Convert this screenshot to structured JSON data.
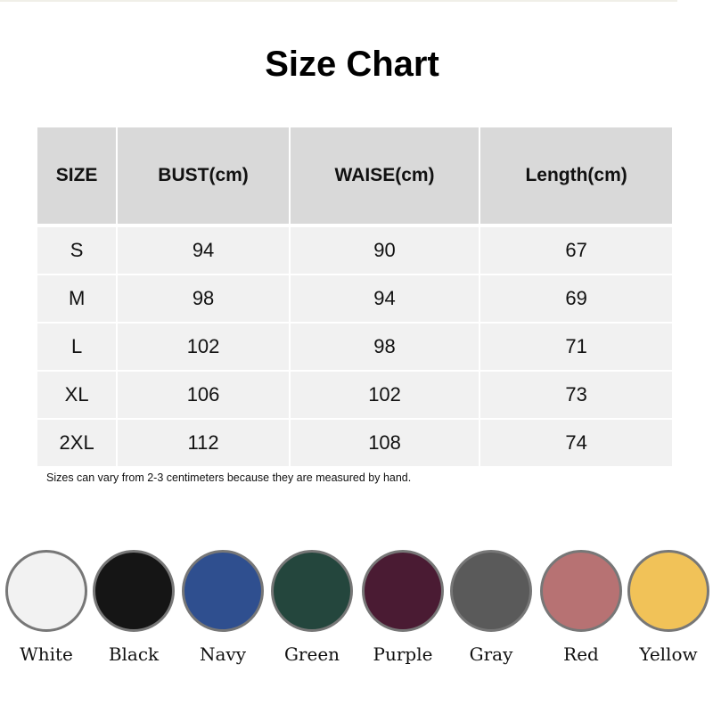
{
  "title": "Size Chart",
  "table": {
    "headers": [
      "SIZE",
      "BUST(cm)",
      "WAISE(cm)",
      "Length(cm)"
    ],
    "rows": [
      [
        "S",
        "94",
        "90",
        "67"
      ],
      [
        "M",
        "98",
        "94",
        "69"
      ],
      [
        "L",
        "102",
        "98",
        "71"
      ],
      [
        "XL",
        "106",
        "102",
        "73"
      ],
      [
        "2XL",
        "112",
        "108",
        "74"
      ]
    ]
  },
  "note": "Sizes can vary from 2-3 centimeters because they are measured by hand.",
  "colors": [
    {
      "name": "White",
      "hex": "#f2f2f2"
    },
    {
      "name": "Black",
      "hex": "#151515"
    },
    {
      "name": "Navy",
      "hex": "#2f4f8f"
    },
    {
      "name": "Green",
      "hex": "#24463d"
    },
    {
      "name": "Purple",
      "hex": "#4a1b33"
    },
    {
      "name": "Gray",
      "hex": "#5a5a5a"
    },
    {
      "name": "Red",
      "hex": "#b77273"
    },
    {
      "name": "Yellow",
      "hex": "#f1c258"
    }
  ]
}
